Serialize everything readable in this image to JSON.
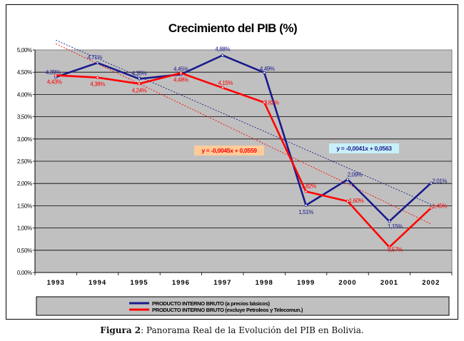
{
  "chart_data": {
    "type": "line",
    "title": "Crecimiento del PIB (%)",
    "categories": [
      "1993",
      "1994",
      "1995",
      "1996",
      "1997",
      "1998",
      "1999",
      "2000",
      "2001",
      "2002"
    ],
    "y_ticks": [
      "0,00%",
      "0,50%",
      "1,00%",
      "1,50%",
      "2,00%",
      "2,50%",
      "3,00%",
      "3,50%",
      "4,00%",
      "4,50%",
      "5,00%"
    ],
    "ylim": [
      0,
      5
    ],
    "grid": true,
    "legend_position": "bottom",
    "series": [
      {
        "name": "PRODUCTO INTERNO BRUTO  (a precios básicos)",
        "values": [
          4.39,
          4.71,
          4.35,
          4.45,
          4.88,
          4.49,
          1.51,
          2.09,
          1.15,
          2.01
        ],
        "labels": [
          "4,39%",
          "4,71%",
          "4,35%",
          "4,45%",
          "4,88%",
          "4,49%",
          "1,51%",
          "2,09%",
          "1,15%",
          "2,01%"
        ],
        "color": "#1a1a8c"
      },
      {
        "name": "PRODUCTO INTERNO BRUTO  (excluye Petroleos y Telecomun.)",
        "values": [
          4.43,
          4.38,
          4.24,
          4.48,
          4.15,
          3.82,
          1.82,
          1.6,
          0.57,
          1.45
        ],
        "labels": [
          "4,43%",
          "4,38%",
          "4,24%",
          "4,48%",
          "4,15%",
          "3,82%",
          "1,82%",
          "1,60%",
          "0,57%",
          "1,45%"
        ],
        "color": "#ff0000"
      }
    ],
    "trendlines": [
      {
        "series": 0,
        "slope": -0.0041,
        "intercept": 0.0563,
        "equation": "y = -0,0041x + 0,0563",
        "color": "#1a1a8c",
        "box_color": "#c8f0f8"
      },
      {
        "series": 1,
        "slope": -0.0045,
        "intercept": 0.0559,
        "equation": "y = -0,0045x + 0,0559",
        "color": "#ff0000",
        "box_color": "#ffcc99"
      }
    ]
  },
  "caption": {
    "label": "Figura 2",
    "text": ": Panorama Real de la Evolución del PIB en Bolivia."
  }
}
